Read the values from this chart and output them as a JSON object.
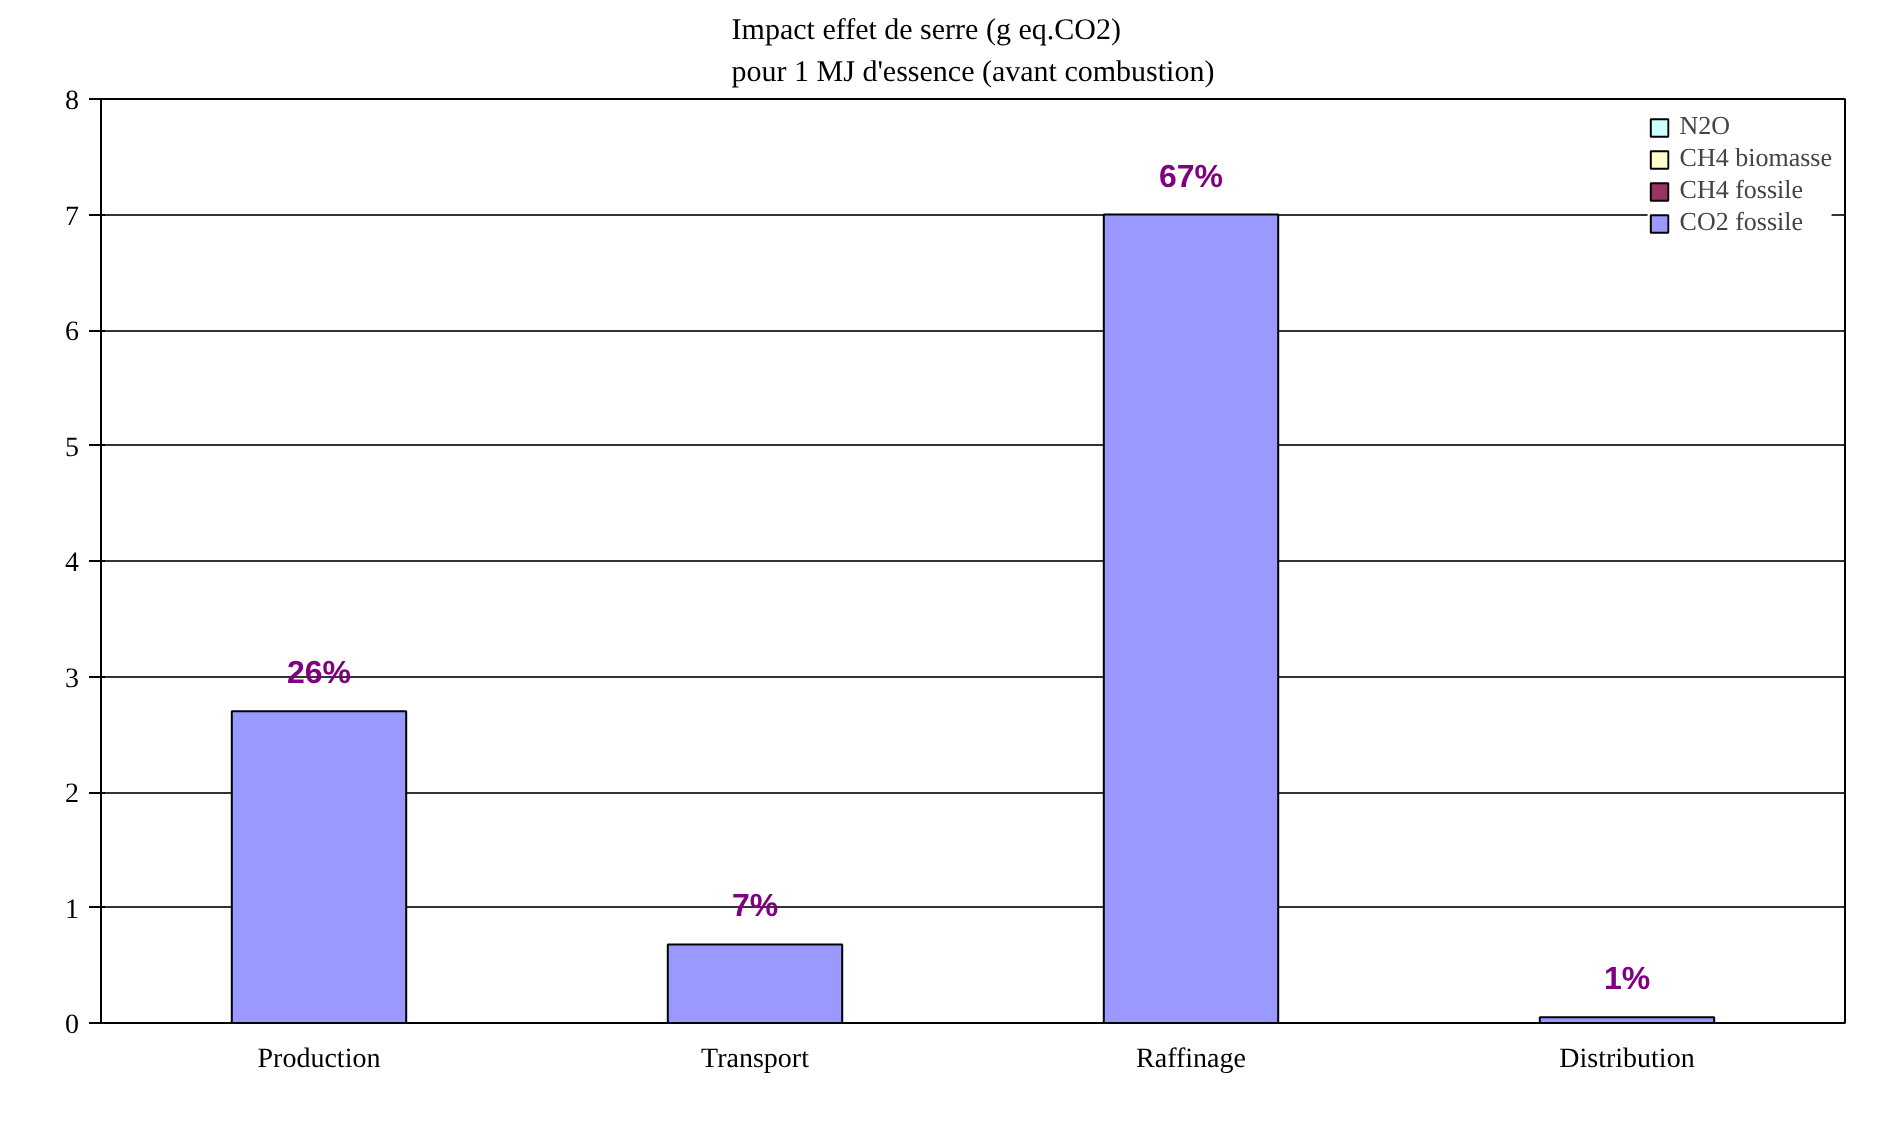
{
  "chart_data": {
    "type": "bar",
    "stacked": true,
    "title": "Impact effet de serre (g eq.CO2)\npour 1 MJ d'essence (avant combustion)",
    "categories": [
      "Production",
      "Transport",
      "Raffinage",
      "Distribution"
    ],
    "series": [
      {
        "name": "CO2 fossile",
        "color": "#9999ff",
        "values": [
          2.7,
          0.68,
          7.0,
          0.05
        ]
      },
      {
        "name": "CH4 fossile",
        "color": "#993366",
        "values": [
          null,
          null,
          null,
          null
        ]
      },
      {
        "name": "CH4 biomasse",
        "color": "#ffffcc",
        "values": [
          null,
          null,
          null,
          null
        ]
      },
      {
        "name": "N2O",
        "color": "#ccffff",
        "values": [
          null,
          null,
          null,
          null
        ]
      }
    ],
    "ylim": [
      0,
      8
    ],
    "yticks": [
      0,
      1,
      2,
      3,
      4,
      5,
      6,
      7,
      8
    ],
    "grid": "y",
    "legend": "top right",
    "annotations": [
      {
        "text": "26%",
        "x": "Production",
        "y": 2.7
      },
      {
        "text": "7%",
        "x": "Transport",
        "y": 0.68
      },
      {
        "text": "67%",
        "x": "Raffinage",
        "y": 7.0
      },
      {
        "text": "1%",
        "x": "Distribution",
        "y": 0.05
      }
    ]
  }
}
